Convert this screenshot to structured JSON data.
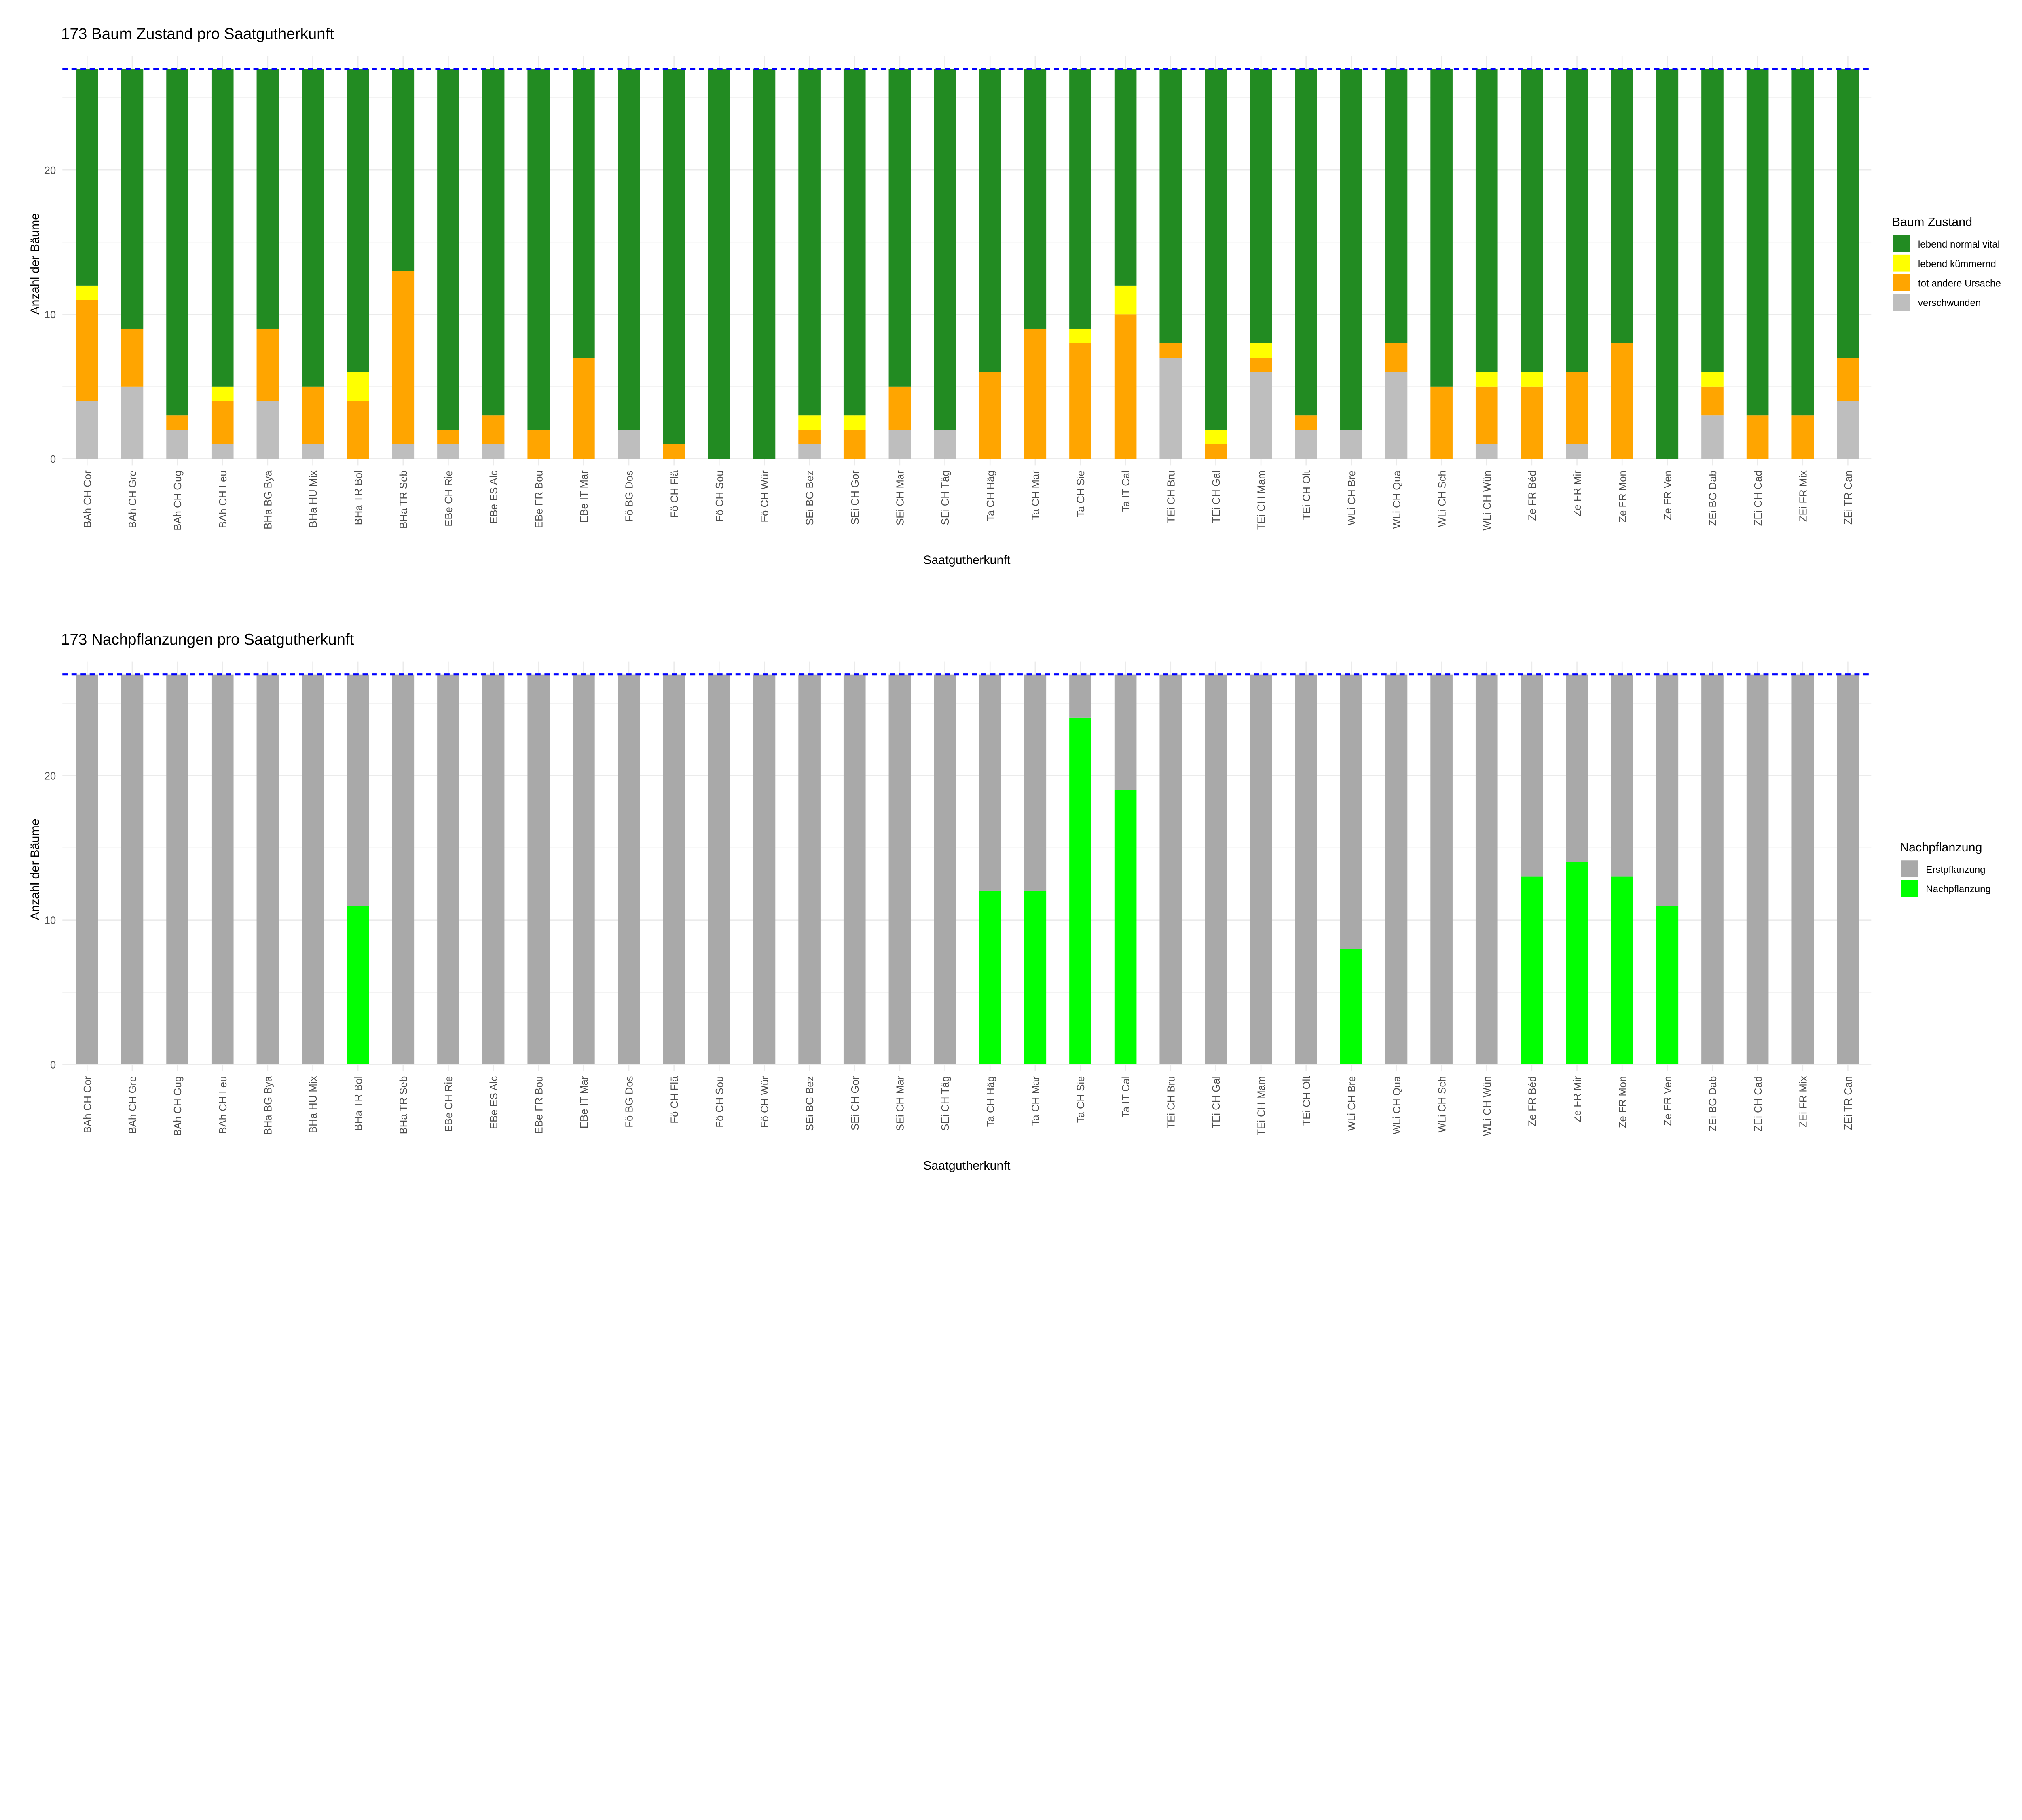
{
  "chart_data": [
    {
      "type": "bar",
      "stacked": true,
      "title": "173 Baum Zustand pro Saatgutherkunft",
      "xlabel": "Saatgutherkunft",
      "ylabel": "Anzahl der Bäume",
      "ylim": [
        0,
        27
      ],
      "yticks": [
        0,
        10,
        20
      ],
      "reference_line": 27,
      "reference_color": "#0000ff",
      "grid": true,
      "legend_placement": "right",
      "legend_title": "Baum Zustand",
      "categories": [
        "BAh CH Cor",
        "BAh CH Gre",
        "BAh CH Gug",
        "BAh CH Leu",
        "BHa BG Bya",
        "BHa HU Mix",
        "BHa TR Bol",
        "BHa TR Seb",
        "EBe CH Rie",
        "EBe ES Alc",
        "EBe FR Bou",
        "EBe IT Mar",
        "Fö BG Dos",
        "Fö CH Flä",
        "Fö CH Sou",
        "Fö CH Wür",
        "SEi BG Bez",
        "SEi CH Gor",
        "SEi CH Mar",
        "SEi CH Täg",
        "Ta CH Häg",
        "Ta CH Mar",
        "Ta CH Sie",
        "Ta IT Cal",
        "TEi CH Bru",
        "TEi CH Gal",
        "TEi CH Mam",
        "TEi CH Olt",
        "WLi CH Bre",
        "WLi CH Qua",
        "WLi CH Sch",
        "WLi CH Wün",
        "Ze FR Béd",
        "Ze FR Mir",
        "Ze FR Mon",
        "Ze FR Ven",
        "ZEi BG Dab",
        "ZEi CH Cad",
        "ZEi FR Mix",
        "ZEi TR Can"
      ],
      "series": [
        {
          "name": "verschwunden",
          "color": "#bebebe",
          "values": [
            4,
            5,
            2,
            1,
            4,
            1,
            0,
            1,
            1,
            1,
            0,
            0,
            2,
            0,
            0,
            0,
            1,
            0,
            2,
            2,
            0,
            0,
            0,
            0,
            7,
            0,
            6,
            2,
            2,
            6,
            0,
            1,
            0,
            1,
            0,
            0,
            3,
            0,
            0,
            4
          ]
        },
        {
          "name": "tot andere Ursache",
          "color": "#ffa500",
          "values": [
            7,
            4,
            1,
            3,
            5,
            4,
            4,
            12,
            1,
            2,
            2,
            7,
            0,
            1,
            0,
            0,
            1,
            2,
            3,
            0,
            6,
            9,
            8,
            10,
            1,
            1,
            1,
            1,
            0,
            2,
            5,
            4,
            5,
            5,
            8,
            0,
            2,
            3,
            3,
            3
          ]
        },
        {
          "name": "lebend kümmernd",
          "color": "#ffff00",
          "values": [
            1,
            0,
            0,
            1,
            0,
            0,
            2,
            0,
            0,
            0,
            0,
            0,
            0,
            0,
            0,
            0,
            1,
            1,
            0,
            0,
            0,
            0,
            1,
            2,
            0,
            1,
            1,
            0,
            0,
            0,
            0,
            1,
            1,
            0,
            0,
            0,
            1,
            0,
            0,
            0
          ]
        },
        {
          "name": "lebend normal vital",
          "color": "#228b22",
          "values": [
            15,
            18,
            24,
            22,
            18,
            22,
            21,
            14,
            25,
            24,
            25,
            20,
            25,
            26,
            27,
            27,
            24,
            24,
            22,
            25,
            21,
            18,
            18,
            15,
            19,
            25,
            19,
            24,
            25,
            19,
            22,
            21,
            21,
            21,
            19,
            27,
            21,
            24,
            24,
            20
          ]
        }
      ],
      "legend_order": [
        "lebend normal vital",
        "lebend kümmernd",
        "tot andere Ursache",
        "verschwunden"
      ]
    },
    {
      "type": "bar",
      "stacked": true,
      "title": "173 Nachpflanzungen pro Saatgutherkunft",
      "xlabel": "Saatgutherkunft",
      "ylabel": "Anzahl der Bäume",
      "ylim": [
        0,
        27
      ],
      "yticks": [
        0,
        10,
        20
      ],
      "reference_line": 27,
      "reference_color": "#0000ff",
      "grid": true,
      "legend_placement": "right",
      "legend_title": "Nachpflanzung",
      "categories": [
        "BAh CH Cor",
        "BAh CH Gre",
        "BAh CH Gug",
        "BAh CH Leu",
        "BHa BG Bya",
        "BHa HU Mix",
        "BHa TR Bol",
        "BHa TR Seb",
        "EBe CH Rie",
        "EBe ES Alc",
        "EBe FR Bou",
        "EBe IT Mar",
        "Fö BG Dos",
        "Fö CH Flä",
        "Fö CH Sou",
        "Fö CH Wür",
        "SEi BG Bez",
        "SEi CH Gor",
        "SEi CH Mar",
        "SEi CH Täg",
        "Ta CH Häg",
        "Ta CH Mar",
        "Ta CH Sie",
        "Ta IT Cal",
        "TEi CH Bru",
        "TEi CH Gal",
        "TEi CH Mam",
        "TEi CH Olt",
        "WLi CH Bre",
        "WLi CH Qua",
        "WLi CH Sch",
        "WLi CH Wün",
        "Ze FR Béd",
        "Ze FR Mir",
        "Ze FR Mon",
        "Ze FR Ven",
        "ZEi BG Dab",
        "ZEi CH Cad",
        "ZEi FR Mix",
        "ZEi TR Can"
      ],
      "series": [
        {
          "name": "Nachpflanzung",
          "color": "#00ff00",
          "values": [
            0,
            0,
            0,
            0,
            0,
            0,
            11,
            0,
            0,
            0,
            0,
            0,
            0,
            0,
            0,
            0,
            0,
            0,
            0,
            0,
            12,
            12,
            24,
            19,
            0,
            0,
            0,
            0,
            8,
            0,
            0,
            0,
            13,
            14,
            13,
            11,
            0,
            0,
            0,
            0
          ]
        },
        {
          "name": "Erstpflanzung",
          "color": "#a9a9a9",
          "values": [
            27,
            27,
            27,
            27,
            27,
            27,
            16,
            27,
            27,
            27,
            27,
            27,
            27,
            27,
            27,
            27,
            27,
            27,
            27,
            27,
            15,
            15,
            3,
            8,
            27,
            27,
            27,
            27,
            19,
            27,
            27,
            27,
            14,
            13,
            14,
            16,
            27,
            27,
            27,
            27
          ]
        }
      ],
      "legend_order": [
        "Erstpflanzung",
        "Nachpflanzung"
      ]
    }
  ]
}
